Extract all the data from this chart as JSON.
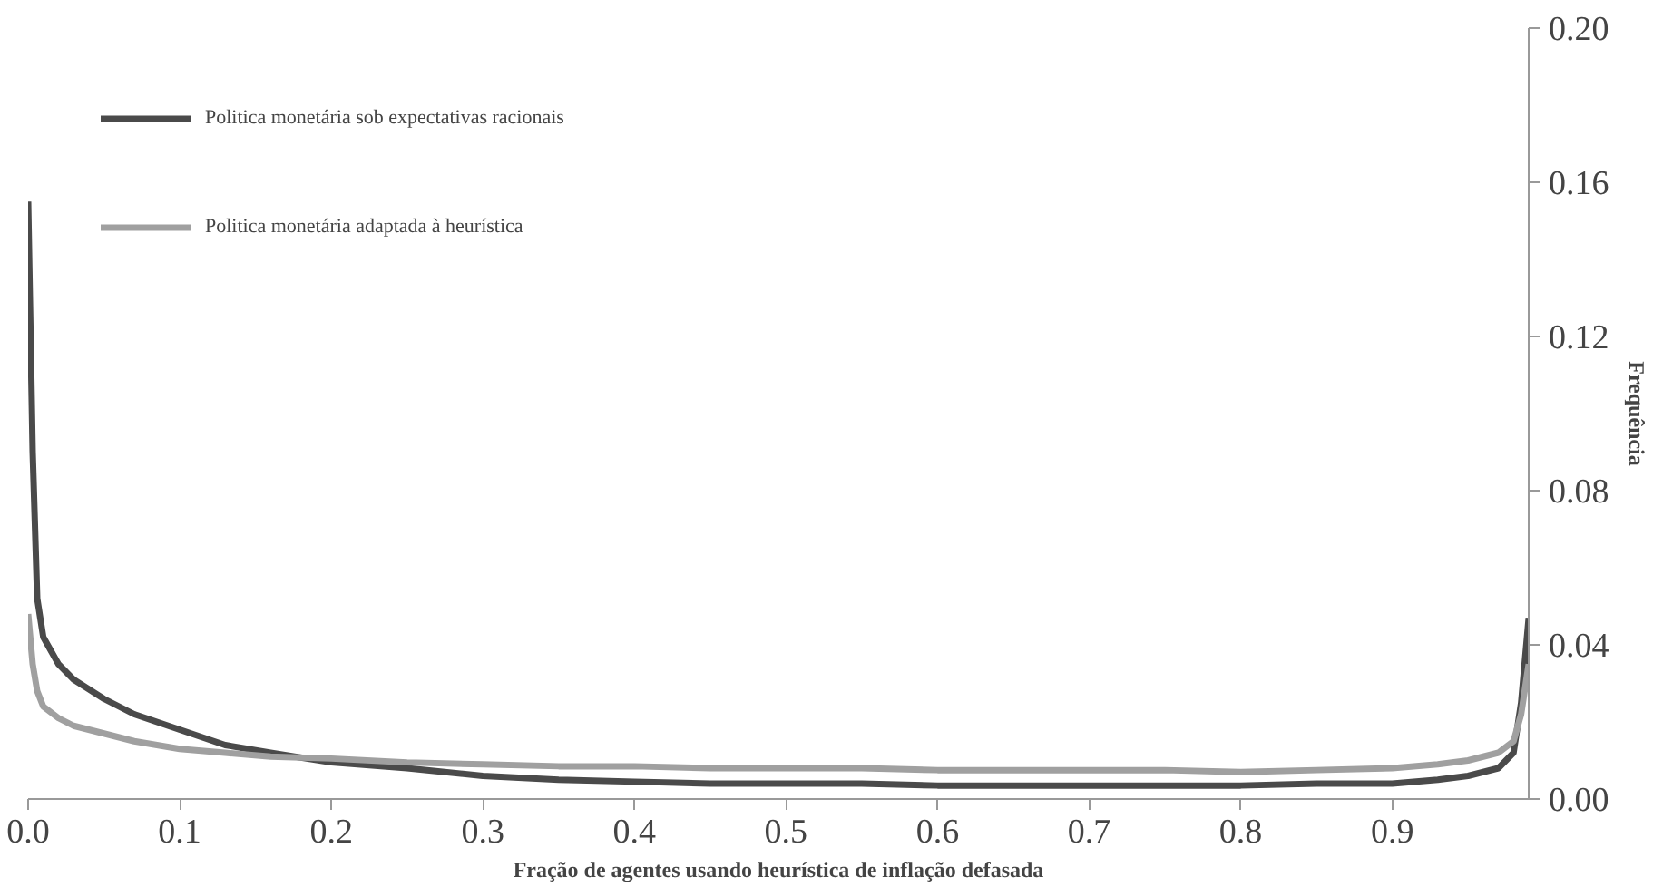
{
  "chart_data": {
    "type": "line",
    "xlabel": "Fração de agentes usando heurística de inflação defasada",
    "ylabel": "Frequência",
    "xlim": [
      0,
      0.99
    ],
    "xticks": [
      {
        "value": 0,
        "label": "0.0"
      },
      0.1,
      0.2,
      0.3,
      0.4,
      0.5,
      0.6,
      0.7,
      0.8,
      0.9
    ],
    "ylim": [
      0,
      0.2
    ],
    "yticks": [
      {
        "value": 0,
        "label": "0.00"
      },
      0.04,
      0.08,
      0.12,
      0.16,
      {
        "value": 0.2,
        "label": "0.20"
      }
    ],
    "grid": false,
    "legend": "top left",
    "marker": "none",
    "line_style": "solid",
    "series": [
      {
        "name": "Politica monetária sob expectativas racionais",
        "color": "#4a4a4a",
        "x": [
          0,
          0.003,
          0.006,
          0.01,
          0.02,
          0.03,
          0.05,
          0.07,
          0.1,
          0.13,
          0.16,
          0.2,
          0.25,
          0.3,
          0.35,
          0.4,
          0.45,
          0.5,
          0.55,
          0.6,
          0.65,
          0.7,
          0.75,
          0.8,
          0.85,
          0.9,
          0.93,
          0.95,
          0.97,
          0.98,
          0.985,
          0.99
        ],
        "values": [
          0.155,
          0.09,
          0.052,
          0.042,
          0.035,
          0.031,
          0.026,
          0.022,
          0.018,
          0.014,
          0.012,
          0.0095,
          0.008,
          0.006,
          0.005,
          0.0045,
          0.004,
          0.004,
          0.004,
          0.0035,
          0.0035,
          0.0035,
          0.0035,
          0.0035,
          0.004,
          0.004,
          0.005,
          0.006,
          0.008,
          0.012,
          0.025,
          0.047
        ]
      },
      {
        "name": "Politica monetária adaptada à heurística",
        "color": "#a0a0a0",
        "x": [
          0,
          0.003,
          0.006,
          0.01,
          0.02,
          0.03,
          0.05,
          0.07,
          0.1,
          0.13,
          0.16,
          0.2,
          0.25,
          0.3,
          0.35,
          0.4,
          0.45,
          0.5,
          0.55,
          0.6,
          0.65,
          0.7,
          0.75,
          0.8,
          0.85,
          0.9,
          0.93,
          0.95,
          0.97,
          0.98,
          0.985,
          0.99
        ],
        "values": [
          0.048,
          0.035,
          0.028,
          0.024,
          0.021,
          0.019,
          0.017,
          0.015,
          0.013,
          0.012,
          0.011,
          0.0105,
          0.0095,
          0.009,
          0.0085,
          0.0085,
          0.008,
          0.008,
          0.008,
          0.0075,
          0.0075,
          0.0075,
          0.0075,
          0.007,
          0.0075,
          0.008,
          0.009,
          0.01,
          0.012,
          0.015,
          0.022,
          0.035
        ]
      }
    ]
  }
}
